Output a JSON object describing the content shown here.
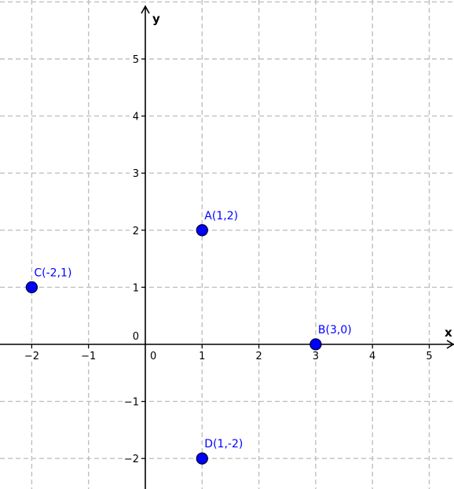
{
  "chart_data": {
    "type": "scatter",
    "xlabel": "x",
    "ylabel": "y",
    "xlim": [
      -2.5,
      5.4
    ],
    "ylim": [
      -2.6,
      5.8
    ],
    "grid": true,
    "x_ticks": [
      -2,
      -1,
      0,
      1,
      2,
      3,
      4,
      5
    ],
    "y_ticks": [
      -2,
      -1,
      0,
      1,
      2,
      3,
      4,
      5
    ],
    "x_tick_labels": [
      "−2",
      "−1",
      "0",
      "1",
      "2",
      "3",
      "4",
      "5"
    ],
    "y_tick_labels": [
      "−2",
      "−1",
      "0",
      "1",
      "2",
      "3",
      "4",
      "5"
    ],
    "points": [
      {
        "label": "A(1,2)",
        "x": 1,
        "y": 2
      },
      {
        "label": "B(3,0)",
        "x": 3,
        "y": 0
      },
      {
        "label": "C(-2,1)",
        "x": -2,
        "y": 1
      },
      {
        "label": "D(1,-2)",
        "x": 1,
        "y": -2
      }
    ],
    "colors": {
      "point_fill": "#0000ff",
      "label": "#0000ff",
      "grid": "#c0c0c0",
      "axis": "#000000"
    }
  }
}
